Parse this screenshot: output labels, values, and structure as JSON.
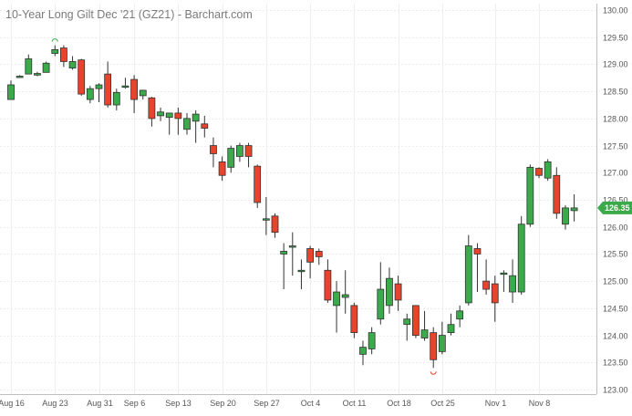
{
  "chart_data": {
    "type": "candlestick",
    "title": "10-Year Long Gilt Dec '21 (GZ21) - Barchart.com",
    "ylim": [
      123.0,
      130.0
    ],
    "y_ticks": [
      "130.00",
      "129.50",
      "129.00",
      "128.50",
      "128.00",
      "127.50",
      "127.00",
      "126.50",
      "126.00",
      "125.50",
      "125.00",
      "124.50",
      "124.00",
      "123.50",
      "123.00"
    ],
    "x_ticks": [
      "Aug 16",
      "Aug 23",
      "Aug 31",
      "Sep 6",
      "Sep 13",
      "Sep 20",
      "Sep 27",
      "Oct 4",
      "Oct 11",
      "Oct 18",
      "Oct 25",
      "Nov 1",
      "Nov 8"
    ],
    "last_price": "126.35",
    "grid": true,
    "colors": {
      "up": "#3aaa4a",
      "down": "#e8432c",
      "last_price_bg": "#3aaa4a"
    },
    "candles": [
      {
        "date": "Aug 16",
        "open": 128.35,
        "high": 128.7,
        "low": 128.35,
        "close": 128.62
      },
      {
        "date": "Aug 17",
        "open": 128.78,
        "high": 128.8,
        "low": 128.75,
        "close": 128.78
      },
      {
        "date": "Aug 18",
        "open": 128.82,
        "high": 129.18,
        "low": 128.82,
        "close": 129.1
      },
      {
        "date": "Aug 19",
        "open": 128.8,
        "high": 128.86,
        "low": 128.78,
        "close": 128.83
      },
      {
        "date": "Aug 20",
        "open": 128.85,
        "high": 129.05,
        "low": 128.85,
        "close": 129.02
      },
      {
        "date": "Aug 23",
        "open": 129.2,
        "high": 129.35,
        "low": 129.15,
        "close": 129.27
      },
      {
        "date": "Aug 24",
        "open": 129.3,
        "high": 129.35,
        "low": 128.95,
        "close": 129.05
      },
      {
        "date": "Aug 25",
        "open": 128.93,
        "high": 129.15,
        "low": 128.9,
        "close": 129.05
      },
      {
        "date": "Aug 26",
        "open": 129.08,
        "high": 129.1,
        "low": 128.42,
        "close": 128.45
      },
      {
        "date": "Aug 27",
        "open": 128.35,
        "high": 128.6,
        "low": 128.28,
        "close": 128.55
      },
      {
        "date": "Aug 31",
        "open": 128.55,
        "high": 128.65,
        "low": 128.3,
        "close": 128.62
      },
      {
        "date": "Sep 1",
        "open": 128.82,
        "high": 129.05,
        "low": 128.2,
        "close": 128.25
      },
      {
        "date": "Sep 2",
        "open": 128.25,
        "high": 128.55,
        "low": 128.15,
        "close": 128.48
      },
      {
        "date": "Sep 3",
        "open": 128.6,
        "high": 128.75,
        "low": 128.55,
        "close": 128.6
      },
      {
        "date": "Sep 6",
        "open": 128.72,
        "high": 128.8,
        "low": 128.1,
        "close": 128.35
      },
      {
        "date": "Sep 7",
        "open": 128.42,
        "high": 128.53,
        "low": 128.35,
        "close": 128.52
      },
      {
        "date": "Sep 8",
        "open": 128.38,
        "high": 128.4,
        "low": 127.85,
        "close": 128.0
      },
      {
        "date": "Sep 9",
        "open": 128.05,
        "high": 128.2,
        "low": 127.95,
        "close": 128.12
      },
      {
        "date": "Sep 10",
        "open": 128.02,
        "high": 128.1,
        "low": 127.7,
        "close": 128.1
      },
      {
        "date": "Sep 13",
        "open": 128.1,
        "high": 128.2,
        "low": 127.7,
        "close": 128.0
      },
      {
        "date": "Sep 14",
        "open": 127.8,
        "high": 128.1,
        "low": 127.7,
        "close": 128.0
      },
      {
        "date": "Sep 15",
        "open": 127.95,
        "high": 128.15,
        "low": 127.55,
        "close": 128.08
      },
      {
        "date": "Sep 16",
        "open": 127.9,
        "high": 128.05,
        "low": 127.65,
        "close": 127.82
      },
      {
        "date": "Sep 17",
        "open": 127.5,
        "high": 127.65,
        "low": 127.1,
        "close": 127.35
      },
      {
        "date": "Sep 20",
        "open": 127.2,
        "high": 127.3,
        "low": 126.85,
        "close": 126.95
      },
      {
        "date": "Sep 21",
        "open": 127.1,
        "high": 127.5,
        "low": 127.0,
        "close": 127.45
      },
      {
        "date": "Sep 22",
        "open": 127.3,
        "high": 127.55,
        "low": 127.2,
        "close": 127.5
      },
      {
        "date": "Sep 23",
        "open": 127.5,
        "high": 127.55,
        "low": 127.1,
        "close": 127.3
      },
      {
        "date": "Sep 24",
        "open": 127.12,
        "high": 127.15,
        "low": 126.35,
        "close": 126.45
      },
      {
        "date": "Sep 27",
        "open": 126.15,
        "high": 126.55,
        "low": 125.85,
        "close": 126.15
      },
      {
        "date": "Sep 28",
        "open": 126.2,
        "high": 126.25,
        "low": 125.8,
        "close": 125.9
      },
      {
        "date": "Sep 29",
        "open": 125.5,
        "high": 125.7,
        "low": 124.85,
        "close": 125.55
      },
      {
        "date": "Sep 30",
        "open": 125.63,
        "high": 125.9,
        "low": 125.1,
        "close": 125.65
      },
      {
        "date": "Oct 1",
        "open": 125.18,
        "high": 125.4,
        "low": 124.85,
        "close": 125.2
      },
      {
        "date": "Oct 4",
        "open": 125.6,
        "high": 125.65,
        "low": 125.05,
        "close": 125.35
      },
      {
        "date": "Oct 5",
        "open": 125.55,
        "high": 125.6,
        "low": 125.3,
        "close": 125.45
      },
      {
        "date": "Oct 6",
        "open": 125.2,
        "high": 125.4,
        "low": 124.6,
        "close": 124.65
      },
      {
        "date": "Oct 7",
        "open": 124.55,
        "high": 125.0,
        "low": 124.05,
        "close": 124.8
      },
      {
        "date": "Oct 8",
        "open": 124.7,
        "high": 125.2,
        "low": 124.4,
        "close": 124.75
      },
      {
        "date": "Oct 11",
        "open": 124.55,
        "high": 124.6,
        "low": 123.95,
        "close": 124.05
      },
      {
        "date": "Oct 12",
        "open": 123.65,
        "high": 123.9,
        "low": 123.45,
        "close": 123.78
      },
      {
        "date": "Oct 13",
        "open": 123.75,
        "high": 124.15,
        "low": 123.65,
        "close": 124.05
      },
      {
        "date": "Oct 14",
        "open": 124.3,
        "high": 125.35,
        "low": 124.2,
        "close": 124.85
      },
      {
        "date": "Oct 15",
        "open": 124.55,
        "high": 125.25,
        "low": 124.4,
        "close": 125.05
      },
      {
        "date": "Oct 18",
        "open": 124.95,
        "high": 125.1,
        "low": 124.45,
        "close": 124.65
      },
      {
        "date": "Oct 19",
        "open": 124.2,
        "high": 124.4,
        "low": 123.9,
        "close": 124.3
      },
      {
        "date": "Oct 20",
        "open": 124.55,
        "high": 124.55,
        "low": 123.95,
        "close": 124.0
      },
      {
        "date": "Oct 21",
        "open": 123.95,
        "high": 124.45,
        "low": 123.9,
        "close": 124.1
      },
      {
        "date": "Oct 22",
        "open": 124.05,
        "high": 124.15,
        "low": 123.4,
        "close": 123.55
      },
      {
        "date": "Oct 25",
        "open": 123.7,
        "high": 124.25,
        "low": 123.65,
        "close": 124.0
      },
      {
        "date": "Oct 26",
        "open": 124.05,
        "high": 124.4,
        "low": 124.0,
        "close": 124.2
      },
      {
        "date": "Oct 27",
        "open": 124.3,
        "high": 124.55,
        "low": 124.15,
        "close": 124.45
      },
      {
        "date": "Oct 28",
        "open": 124.6,
        "high": 125.85,
        "low": 124.55,
        "close": 125.65
      },
      {
        "date": "Oct 29",
        "open": 125.6,
        "high": 125.7,
        "low": 124.8,
        "close": 125.5
      },
      {
        "date": "Oct 30",
        "open": 125.0,
        "high": 125.4,
        "low": 124.75,
        "close": 124.85
      },
      {
        "date": "Nov 1",
        "open": 124.95,
        "high": 125.1,
        "low": 124.25,
        "close": 124.6
      },
      {
        "date": "Nov 2",
        "open": 125.15,
        "high": 125.2,
        "low": 124.8,
        "close": 125.15
      },
      {
        "date": "Nov 3",
        "open": 124.8,
        "high": 125.4,
        "low": 124.6,
        "close": 125.1
      },
      {
        "date": "Nov 4",
        "open": 124.8,
        "high": 126.2,
        "low": 124.75,
        "close": 126.05
      },
      {
        "date": "Nov 5",
        "open": 126.05,
        "high": 127.15,
        "low": 126.0,
        "close": 127.1
      },
      {
        "date": "Nov 8",
        "open": 127.08,
        "high": 127.1,
        "low": 126.9,
        "close": 126.95
      },
      {
        "date": "Nov 9",
        "open": 126.9,
        "high": 127.25,
        "low": 126.85,
        "close": 127.2
      },
      {
        "date": "Nov 10",
        "open": 126.95,
        "high": 127.1,
        "low": 126.15,
        "close": 126.25
      },
      {
        "date": "Nov 11",
        "open": 126.05,
        "high": 126.4,
        "low": 125.95,
        "close": 126.35
      },
      {
        "date": "Nov 12",
        "open": 126.3,
        "high": 126.6,
        "low": 126.1,
        "close": 126.35
      }
    ]
  }
}
